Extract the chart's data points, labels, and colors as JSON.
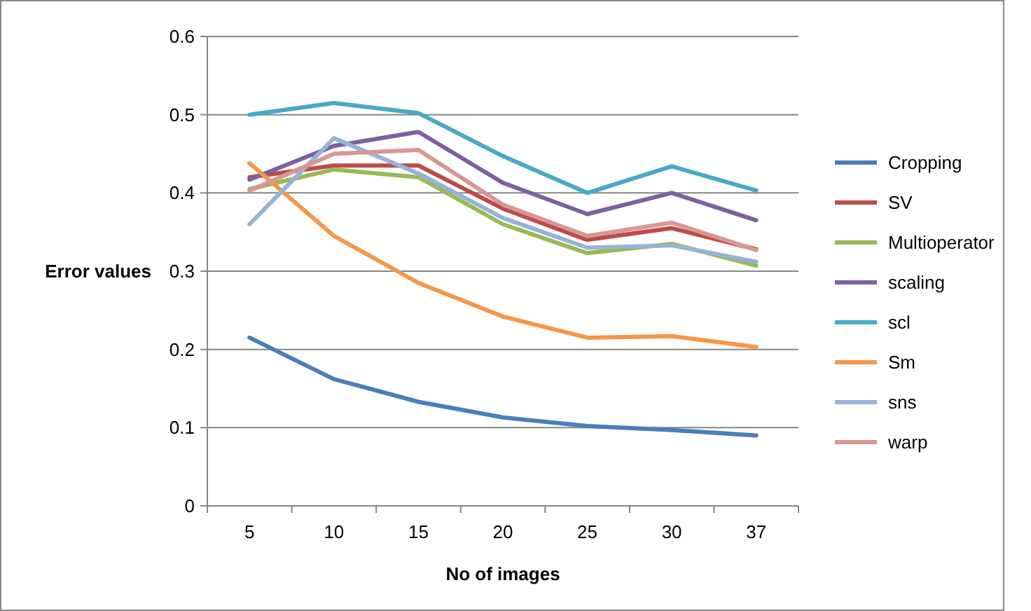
{
  "chart_data": {
    "type": "line",
    "xlabel": "No of images",
    "ylabel": "Error values",
    "categories": [
      "5",
      "10",
      "15",
      "20",
      "25",
      "30",
      "37"
    ],
    "ylim": [
      0,
      0.6
    ],
    "yticks": [
      {
        "value": 0,
        "label": "0"
      },
      {
        "value": 0.1,
        "label": "0.1"
      },
      {
        "value": 0.2,
        "label": "0.2"
      },
      {
        "value": 0.3,
        "label": "0.3"
      },
      {
        "value": 0.4,
        "label": "0.4"
      },
      {
        "value": 0.5,
        "label": "0.5"
      },
      {
        "value": 0.6,
        "label": "0.6"
      }
    ],
    "grid": "y",
    "legend": "right",
    "marker": "none",
    "line_style": "solid",
    "series": [
      {
        "name": "Cropping",
        "color": "#4a7ebb",
        "values": [
          0.215,
          0.162,
          0.133,
          0.113,
          0.102,
          0.097,
          0.09
        ]
      },
      {
        "name": "SV",
        "color": "#be4b48",
        "values": [
          0.42,
          0.435,
          0.435,
          0.38,
          0.34,
          0.355,
          0.328
        ]
      },
      {
        "name": "Multioperator",
        "color": "#98b954",
        "values": [
          0.405,
          0.43,
          0.42,
          0.36,
          0.323,
          0.335,
          0.307
        ]
      },
      {
        "name": "scaling",
        "color": "#7d60a0",
        "values": [
          0.417,
          0.46,
          0.478,
          0.413,
          0.373,
          0.4,
          0.365
        ]
      },
      {
        "name": "scl",
        "color": "#46aac5",
        "values": [
          0.5,
          0.515,
          0.502,
          0.447,
          0.4,
          0.434,
          0.403
        ]
      },
      {
        "name": "Sm",
        "color": "#f79646",
        "values": [
          0.438,
          0.345,
          0.285,
          0.242,
          0.215,
          0.217,
          0.203
        ]
      },
      {
        "name": "sns",
        "color": "#95b3d7",
        "values": [
          0.36,
          0.47,
          0.425,
          0.368,
          0.33,
          0.333,
          0.312
        ]
      },
      {
        "name": "warp",
        "color": "#d99694",
        "values": [
          0.403,
          0.45,
          0.455,
          0.385,
          0.345,
          0.362,
          0.327
        ]
      }
    ]
  }
}
